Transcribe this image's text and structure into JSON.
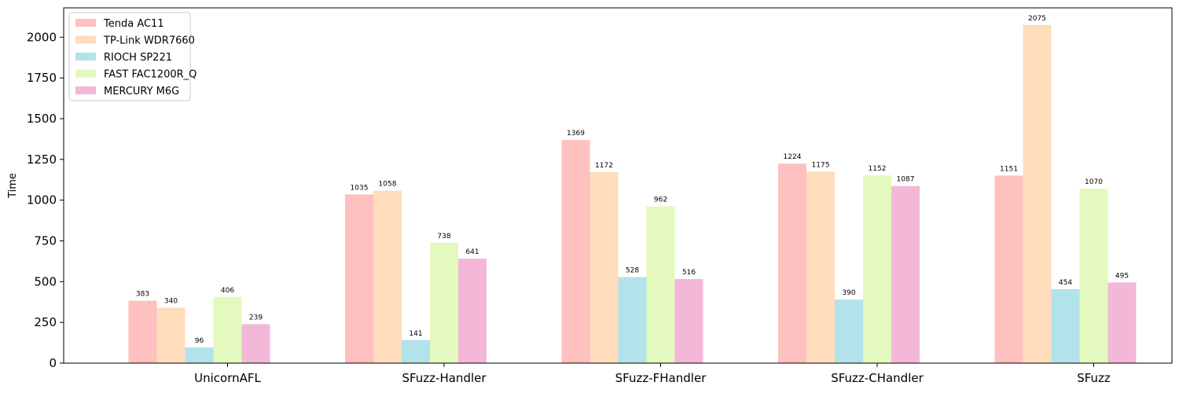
{
  "chart_data": {
    "type": "bar",
    "title": "",
    "xlabel": "",
    "ylabel": "Time",
    "ylim": [
      0,
      2180
    ],
    "yticks": [
      0,
      250,
      500,
      750,
      1000,
      1250,
      1500,
      1750,
      2000
    ],
    "categories": [
      "UnicornAFL",
      "SFuzz-Handler",
      "SFuzz-FHandler",
      "SFuzz-CHandler",
      "SFuzz"
    ],
    "series": [
      {
        "name": "Tenda AC11",
        "color": "#FFC0C0",
        "values": [
          383,
          1035,
          1369,
          1224,
          1151
        ]
      },
      {
        "name": "TP-Link WDR7660",
        "color": "#FFDDBD",
        "values": [
          340,
          1058,
          1172,
          1175,
          2075
        ]
      },
      {
        "name": "RIOCH SP221",
        "color": "#B2E2EA",
        "values": [
          96,
          141,
          528,
          390,
          454
        ]
      },
      {
        "name": "FAST FAC1200R_Q",
        "color": "#E3F9BD",
        "values": [
          406,
          738,
          962,
          1152,
          1070
        ]
      },
      {
        "name": "MERCURY M6G",
        "color": "#F3B8D7",
        "values": [
          239,
          641,
          516,
          1087,
          495
        ]
      }
    ],
    "legend_position": "top-left",
    "grid": false
  }
}
